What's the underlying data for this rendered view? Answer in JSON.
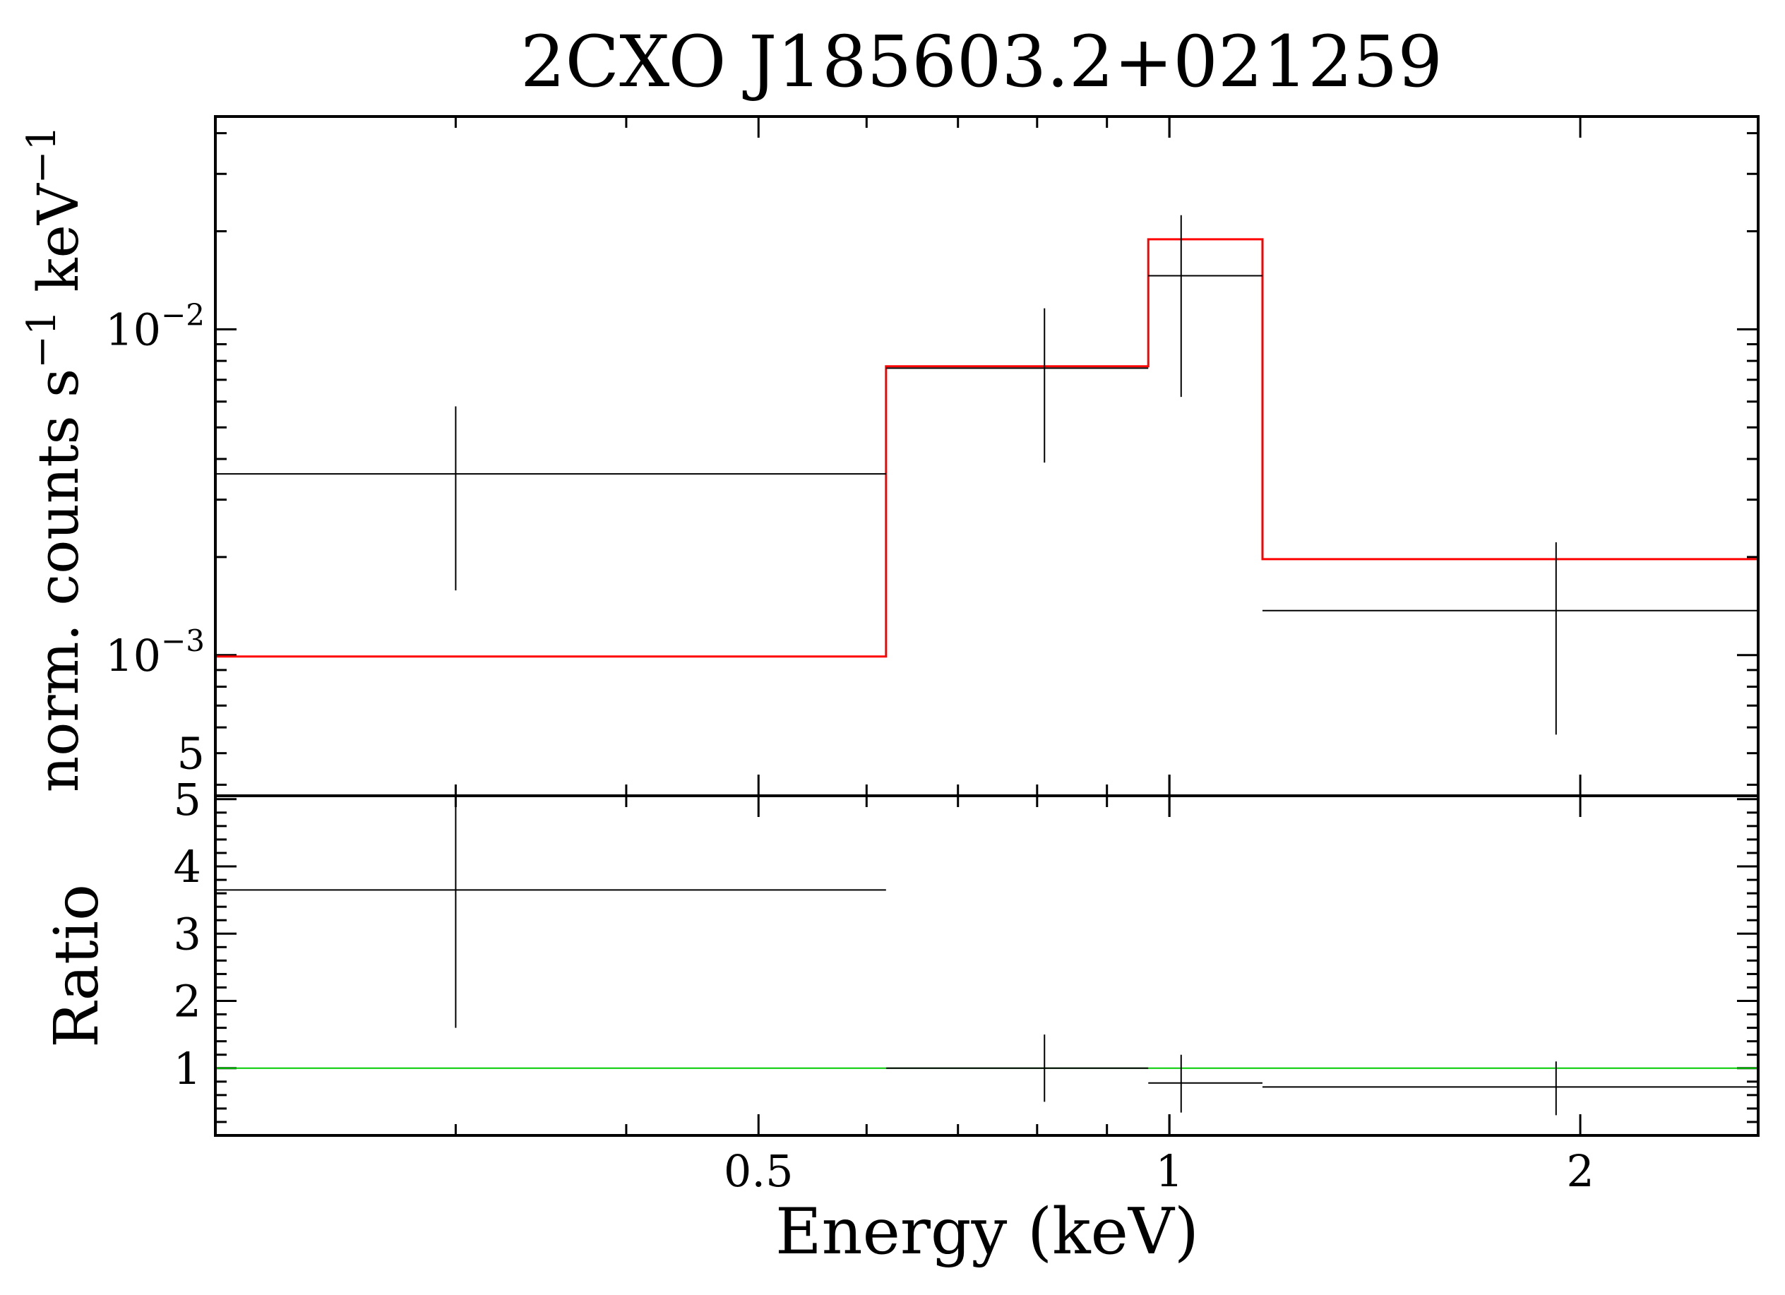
{
  "chart_data": [
    {
      "type": "line",
      "panel": "spectrum",
      "title": "2CXO J185603.2+021259",
      "xlabel": "",
      "ylabel": "norm. counts s^-1 keV^-1",
      "xscale": "log",
      "yscale": "log",
      "xlim": [
        0.2,
        2.7
      ],
      "ylim": [
        0.00037,
        0.045
      ],
      "yticks": [
        {
          "value": 0.01,
          "mantissa": "10",
          "exponent": "−2"
        },
        {
          "value": 0.001,
          "mantissa": "10",
          "exponent": "−3"
        },
        {
          "value": 0.0005,
          "label": "5",
          "exponent": ""
        }
      ],
      "series": [
        {
          "role": "data",
          "color": "#000000",
          "points": [
            {
              "x": 0.3,
              "xlo": 0.2,
              "xhi": 0.62,
              "y": 0.0036,
              "ylo": 0.00158,
              "yhi": 0.0058
            },
            {
              "x": 0.81,
              "xlo": 0.62,
              "xhi": 0.965,
              "y": 0.0076,
              "ylo": 0.0039,
              "yhi": 0.0116
            },
            {
              "x": 1.02,
              "xlo": 0.965,
              "xhi": 1.17,
              "y": 0.0146,
              "ylo": 0.0062,
              "yhi": 0.0224
            },
            {
              "x": 1.92,
              "xlo": 1.17,
              "xhi": 2.7,
              "y": 0.00137,
              "ylo": 0.00057,
              "yhi": 0.00222
            }
          ]
        },
        {
          "role": "model",
          "color": "#ff0000",
          "steps": [
            {
              "xlo": 0.2,
              "xhi": 0.62,
              "y": 0.00099
            },
            {
              "xlo": 0.62,
              "xhi": 0.965,
              "y": 0.0077
            },
            {
              "xlo": 0.965,
              "xhi": 1.17,
              "y": 0.0189
            },
            {
              "xlo": 1.17,
              "xhi": 2.7,
              "y": 0.00197
            }
          ]
        }
      ]
    },
    {
      "type": "line",
      "panel": "ratio",
      "xlabel": "Energy (keV)",
      "ylabel": "Ratio",
      "xscale": "log",
      "yscale": "linear",
      "xlim": [
        0.2,
        2.7
      ],
      "ylim": [
        0,
        5.05
      ],
      "xticks": [
        {
          "value": 0.5,
          "label": "0.5"
        },
        {
          "value": 1,
          "label": "1"
        },
        {
          "value": 2,
          "label": "2"
        }
      ],
      "yticks": [
        {
          "value": 1,
          "label": "1"
        },
        {
          "value": 2,
          "label": "2"
        },
        {
          "value": 3,
          "label": "3"
        },
        {
          "value": 4,
          "label": "4"
        },
        {
          "value": 5,
          "label": "5"
        }
      ],
      "reference_line": {
        "y": 1,
        "color": "#00cc00"
      },
      "series": [
        {
          "role": "data",
          "color": "#000000",
          "points": [
            {
              "x": 0.3,
              "xlo": 0.2,
              "xhi": 0.62,
              "y": 3.65,
              "ylo": 1.6,
              "yhi": 5.05
            },
            {
              "x": 0.81,
              "xlo": 0.62,
              "xhi": 0.965,
              "y": 1.0,
              "ylo": 0.5,
              "yhi": 1.5
            },
            {
              "x": 1.02,
              "xlo": 0.965,
              "xhi": 1.17,
              "y": 0.78,
              "ylo": 0.34,
              "yhi": 1.2
            },
            {
              "x": 1.92,
              "xlo": 1.17,
              "xhi": 2.7,
              "y": 0.72,
              "ylo": 0.3,
              "yhi": 1.1
            }
          ]
        }
      ]
    }
  ]
}
